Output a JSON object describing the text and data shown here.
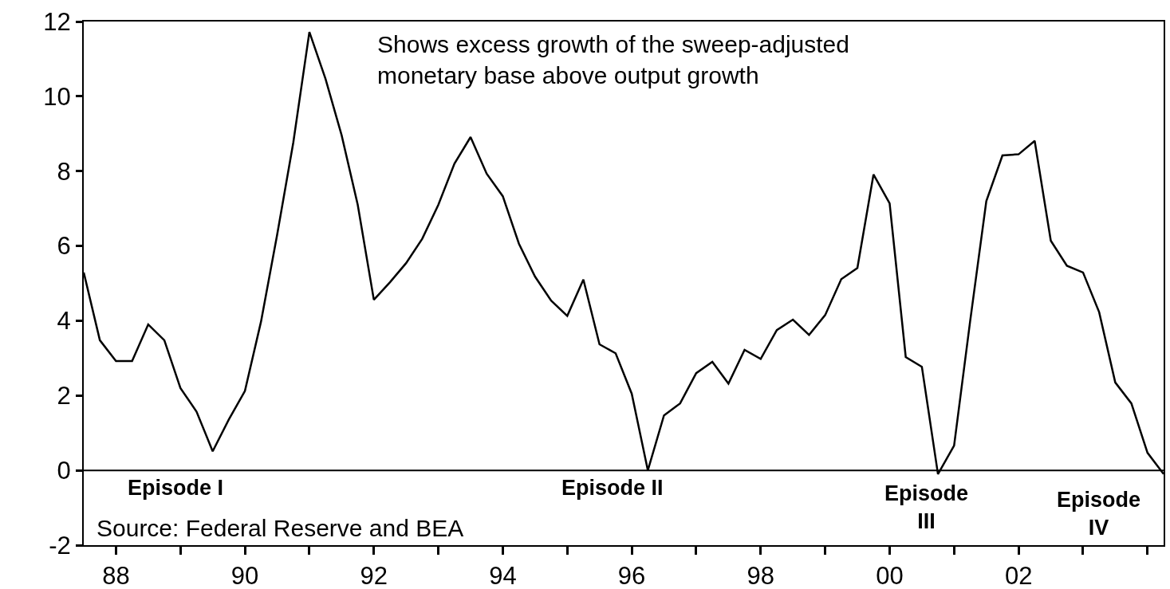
{
  "chart_data": {
    "type": "line",
    "x": [
      1987.5,
      1987.75,
      1988,
      1988.25,
      1988.5,
      1988.75,
      1989,
      1989.25,
      1989.5,
      1989.75,
      1990,
      1990.25,
      1990.5,
      1990.75,
      1991,
      1991.25,
      1991.5,
      1991.75,
      1992,
      1992.25,
      1992.5,
      1992.75,
      1993,
      1993.25,
      1993.5,
      1993.75,
      1994,
      1994.25,
      1994.5,
      1994.75,
      1995,
      1995.25,
      1995.5,
      1995.75,
      1996,
      1996.25,
      1996.5,
      1996.75,
      1997,
      1997.25,
      1997.5,
      1997.75,
      1998,
      1998.25,
      1998.5,
      1998.75,
      1999,
      1999.25,
      1999.5,
      1999.75,
      2000,
      2000.25,
      2000.5,
      2000.75,
      2001,
      2001.25,
      2001.5,
      2001.75,
      2002,
      2002.25,
      2002.5,
      2002.75,
      2003,
      2003.25,
      2003.5,
      2003.75,
      2004,
      2004.25
    ],
    "series": [
      {
        "color": "#000000",
        "values": [
          5.29,
          3.48,
          2.92,
          2.92,
          3.9,
          3.48,
          2.2,
          1.57,
          0.51,
          1.36,
          2.12,
          3.98,
          6.3,
          8.76,
          11.72,
          10.47,
          8.96,
          7.1,
          4.56,
          5.03,
          5.54,
          6.19,
          7.1,
          8.2,
          8.91,
          7.93,
          7.33,
          6.06,
          5.18,
          4.54,
          4.13,
          5.1,
          3.37,
          3.13,
          2.05,
          0,
          1.47,
          1.79,
          2.6,
          2.9,
          2.32,
          3.22,
          2.98,
          3.75,
          4.03,
          3.62,
          4.15,
          5.11,
          5.41,
          7.91,
          7.14,
          3.03,
          2.77,
          -0.1,
          0.66,
          4.0,
          7.2,
          8.42,
          8.45,
          8.81,
          6.14,
          5.47,
          5.29,
          4.23,
          2.35,
          1.79,
          0.47,
          -0.1
        ]
      }
    ],
    "xlim": [
      1987.5,
      2004.25
    ],
    "xticks": [
      {
        "value": 1988,
        "label": "88"
      },
      {
        "value": 1989,
        "label": null
      },
      {
        "value": 1990,
        "label": "90"
      },
      {
        "value": 1991,
        "label": null
      },
      {
        "value": 1992,
        "label": "92"
      },
      {
        "value": 1993,
        "label": null
      },
      {
        "value": 1994,
        "label": "94"
      },
      {
        "value": 1995,
        "label": null
      },
      {
        "value": 1996,
        "label": "96"
      },
      {
        "value": 1997,
        "label": null
      },
      {
        "value": 1998,
        "label": "98"
      },
      {
        "value": 1999,
        "label": null
      },
      {
        "value": 2000,
        "label": "00"
      },
      {
        "value": 2001,
        "label": null
      },
      {
        "value": 2002,
        "label": "02"
      },
      {
        "value": 2003,
        "label": null
      },
      {
        "value": 2004,
        "label": null
      }
    ],
    "ylim": [
      -2,
      12
    ],
    "yticks": [
      -2,
      0,
      2,
      4,
      6,
      8,
      10,
      12
    ],
    "grid": false,
    "marker": "none",
    "line_style": "solid",
    "ref_lines": [
      {
        "axis": "y",
        "value": 0,
        "color": "#000000"
      }
    ],
    "annotations": [
      "Shows excess growth of the sweep-adjusted\nmonetary base above output growth",
      "Source: Federal Reserve and BEA",
      "Episode I",
      "Episode II",
      "Episode\nIII",
      "Episode\nIV"
    ]
  }
}
